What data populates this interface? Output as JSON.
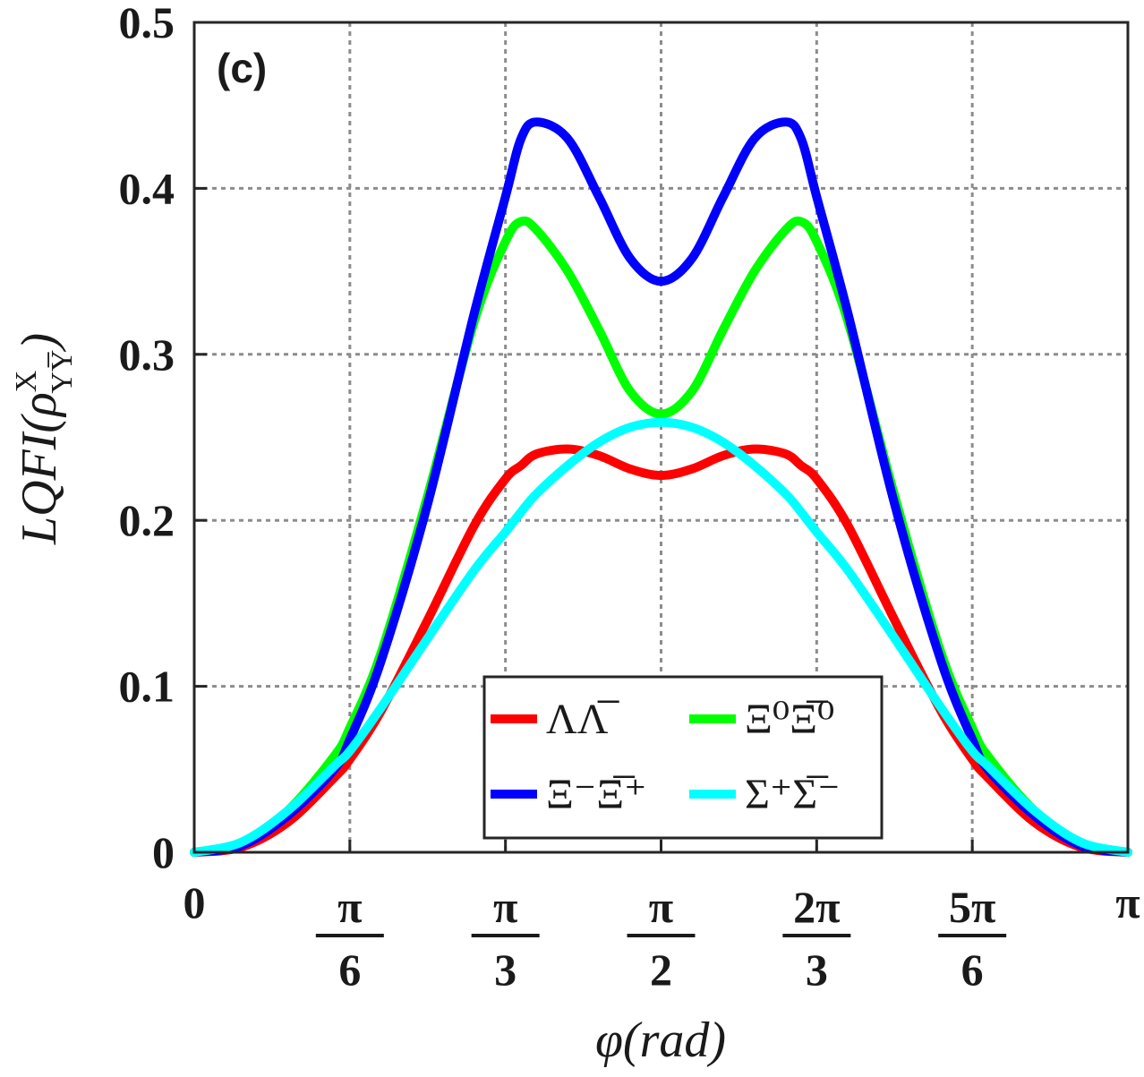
{
  "chart_data": {
    "type": "line",
    "panel_tag": "(c)",
    "xlabel": "φ(rad)",
    "ylabel": "LQFI(ρ",
    "ylabel_sup": "X",
    "ylabel_sub": "YY̅",
    "xlim": [
      0,
      3.14159
    ],
    "ylim": [
      0,
      0.5
    ],
    "grid": true,
    "legend_position": "lower-center",
    "x_ticks": [
      {
        "value": 0,
        "label": "0"
      },
      {
        "value": 0.5236,
        "num": "π",
        "den": "6"
      },
      {
        "value": 1.0472,
        "num": "π",
        "den": "3"
      },
      {
        "value": 1.5708,
        "num": "π",
        "den": "2"
      },
      {
        "value": 2.0944,
        "num": "2π",
        "den": "3"
      },
      {
        "value": 2.618,
        "num": "5π",
        "den": "6"
      },
      {
        "value": 3.14159,
        "label": "π"
      }
    ],
    "y_ticks": [
      {
        "value": 0,
        "label": "0"
      },
      {
        "value": 0.1,
        "label": "0.1"
      },
      {
        "value": 0.2,
        "label": "0.2"
      },
      {
        "value": 0.3,
        "label": "0.3"
      },
      {
        "value": 0.4,
        "label": "0.4"
      },
      {
        "value": 0.5,
        "label": "0.5"
      }
    ],
    "x": [
      0,
      0.1571,
      0.3142,
      0.4712,
      0.5236,
      0.6283,
      0.7854,
      0.9425,
      1.0472,
      1.0996,
      1.1519,
      1.2566,
      1.3614,
      1.4661,
      1.5708,
      1.6755,
      1.7802,
      1.885,
      1.9897,
      2.042,
      2.0944,
      2.1991,
      2.3562,
      2.5133,
      2.618,
      2.6704,
      2.8274,
      2.9845,
      3.1416
    ],
    "series": [
      {
        "name": "ΛΛ̅",
        "color": "#ff0000",
        "values": [
          0,
          0.003,
          0.018,
          0.045,
          0.056,
          0.085,
          0.14,
          0.197,
          0.225,
          0.233,
          0.24,
          0.243,
          0.239,
          0.231,
          0.227,
          0.231,
          0.239,
          0.243,
          0.24,
          0.233,
          0.225,
          0.197,
          0.14,
          0.085,
          0.056,
          0.045,
          0.018,
          0.003,
          0
        ]
      },
      {
        "name": "Ξ⁰Ξ̅⁰",
        "color": "#00ff00",
        "values": [
          0,
          0.005,
          0.025,
          0.058,
          0.075,
          0.12,
          0.215,
          0.32,
          0.368,
          0.38,
          0.375,
          0.35,
          0.315,
          0.278,
          0.264,
          0.278,
          0.315,
          0.35,
          0.375,
          0.38,
          0.368,
          0.32,
          0.215,
          0.12,
          0.075,
          0.058,
          0.025,
          0.005,
          0
        ]
      },
      {
        "name": "Ξ⁻Ξ̅⁺",
        "color": "#0000ff",
        "values": [
          0,
          0.004,
          0.022,
          0.05,
          0.068,
          0.115,
          0.21,
          0.325,
          0.395,
          0.43,
          0.44,
          0.43,
          0.395,
          0.358,
          0.344,
          0.358,
          0.395,
          0.43,
          0.44,
          0.43,
          0.395,
          0.325,
          0.21,
          0.115,
          0.068,
          0.05,
          0.022,
          0.004,
          0
        ]
      },
      {
        "name": "Σ⁺Σ̅⁻",
        "color": "#00ffff",
        "values": [
          0,
          0.006,
          0.025,
          0.052,
          0.061,
          0.087,
          0.129,
          0.17,
          0.193,
          0.205,
          0.216,
          0.233,
          0.247,
          0.256,
          0.259,
          0.256,
          0.247,
          0.233,
          0.216,
          0.205,
          0.193,
          0.17,
          0.129,
          0.087,
          0.061,
          0.052,
          0.025,
          0.006,
          0
        ]
      }
    ]
  }
}
